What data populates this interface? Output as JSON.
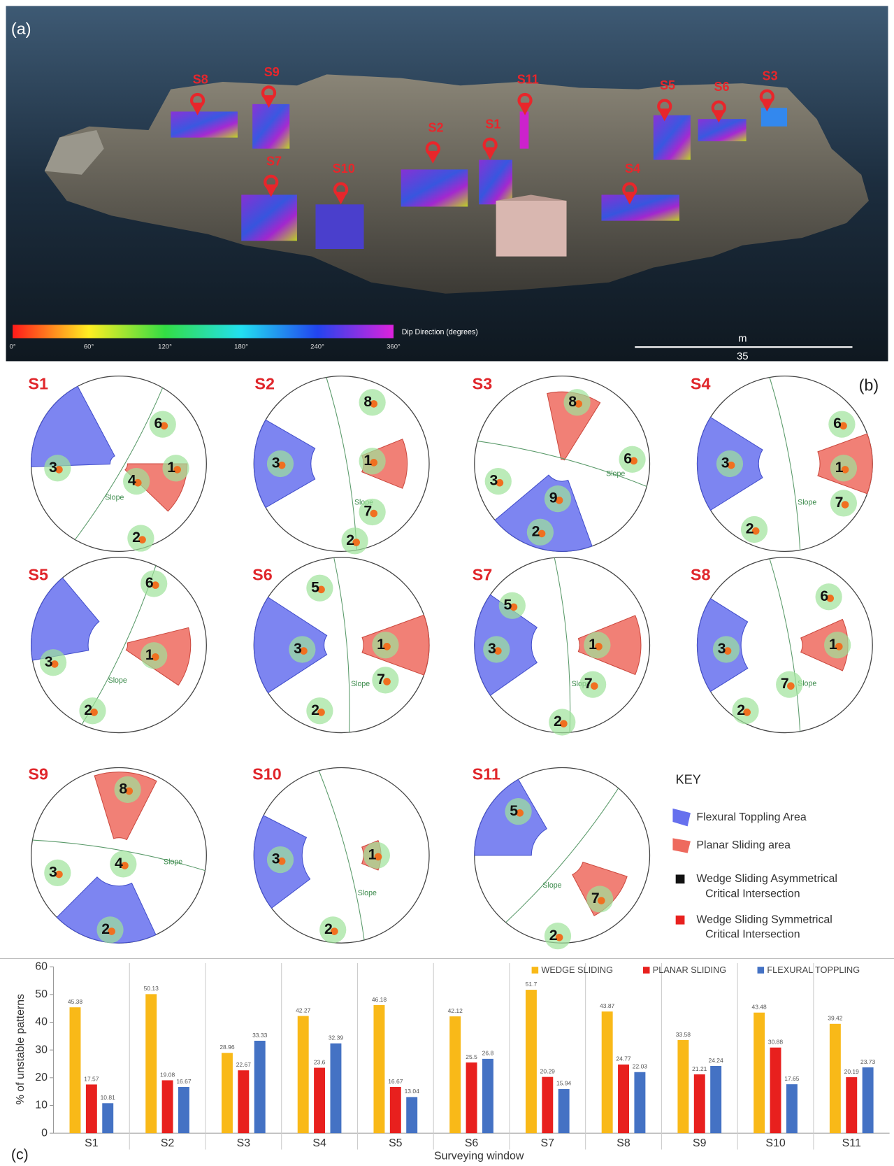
{
  "panel_a": {
    "label": "(a)",
    "markers": [
      {
        "label": "S1"
      },
      {
        "label": "S2"
      },
      {
        "label": "S3"
      },
      {
        "label": "S4"
      },
      {
        "label": "S5"
      },
      {
        "label": "S6"
      },
      {
        "label": "S7"
      },
      {
        "label": "S8"
      },
      {
        "label": "S9"
      },
      {
        "label": "S10"
      },
      {
        "label": "S11"
      }
    ],
    "colorbar": {
      "title": "Dip Direction (degrees)",
      "tick_labels": [
        "0°",
        "60°",
        "120°",
        "180°",
        "240°",
        "360°"
      ]
    },
    "scale_bar": {
      "unit": "m",
      "length_label": "35"
    }
  },
  "panel_b": {
    "label": "(b)",
    "slope_label": "Slope",
    "stereonets": [
      {
        "name": "S1",
        "sets": [
          "3",
          "4",
          "1",
          "6",
          "2"
        ]
      },
      {
        "name": "S2",
        "sets": [
          "3",
          "8",
          "1",
          "7",
          "2"
        ]
      },
      {
        "name": "S3",
        "sets": [
          "8",
          "6",
          "3",
          "9",
          "2"
        ]
      },
      {
        "name": "S4",
        "sets": [
          "3",
          "6",
          "1",
          "7",
          "2"
        ]
      },
      {
        "name": "S5",
        "sets": [
          "3",
          "6",
          "1",
          "2"
        ]
      },
      {
        "name": "S6",
        "sets": [
          "5",
          "3",
          "1",
          "7",
          "2"
        ]
      },
      {
        "name": "S7",
        "sets": [
          "5",
          "3",
          "1",
          "7",
          "2"
        ]
      },
      {
        "name": "S8",
        "sets": [
          "6",
          "1",
          "3",
          "7",
          "2"
        ]
      },
      {
        "name": "S9",
        "sets": [
          "8",
          "4",
          "3",
          "2"
        ]
      },
      {
        "name": "S10",
        "sets": [
          "3",
          "1",
          "2"
        ]
      },
      {
        "name": "S11",
        "sets": [
          "5",
          "7",
          "2"
        ]
      }
    ],
    "key": {
      "title": "KEY",
      "items": [
        {
          "lines": [
            "Flexural Toppling Area"
          ]
        },
        {
          "lines": [
            "Planar Sliding area"
          ]
        },
        {
          "lines": [
            "Wedge Sliding Asymmetrical",
            "Critical Intersection"
          ]
        },
        {
          "lines": [
            "Wedge Sliding Symmetrical",
            "Critical Intersection"
          ]
        }
      ]
    }
  },
  "chart_data": {
    "type": "bar",
    "panel_label": "(c)",
    "y_label": "% of unstable patterns",
    "x_label": "Surveying window",
    "categories": [
      "S1",
      "S2",
      "S3",
      "S4",
      "S5",
      "S6",
      "S7",
      "S8",
      "S9",
      "S10",
      "S11"
    ],
    "series": [
      {
        "name": "WEDGE SLIDING",
        "color": "#f9b918",
        "values": [
          45.38,
          50.13,
          28.96,
          42.27,
          46.18,
          42.12,
          51.7,
          43.87,
          33.58,
          43.48,
          39.42
        ]
      },
      {
        "name": "PLANAR SLIDING",
        "color": "#e8201e",
        "values": [
          17.57,
          19.08,
          22.67,
          23.6,
          16.67,
          25.5,
          20.29,
          24.77,
          21.21,
          30.88,
          20.19
        ]
      },
      {
        "name": "FLEXURAL TOPPLING",
        "color": "#4472c4",
        "values": [
          10.81,
          16.67,
          33.33,
          32.39,
          13.04,
          26.8,
          15.94,
          22.03,
          24.24,
          17.65,
          23.73
        ]
      }
    ],
    "ylim": [
      0,
      60
    ],
    "yticks": [
      0,
      10,
      20,
      30,
      40,
      50,
      60
    ],
    "legend": "top-right"
  }
}
